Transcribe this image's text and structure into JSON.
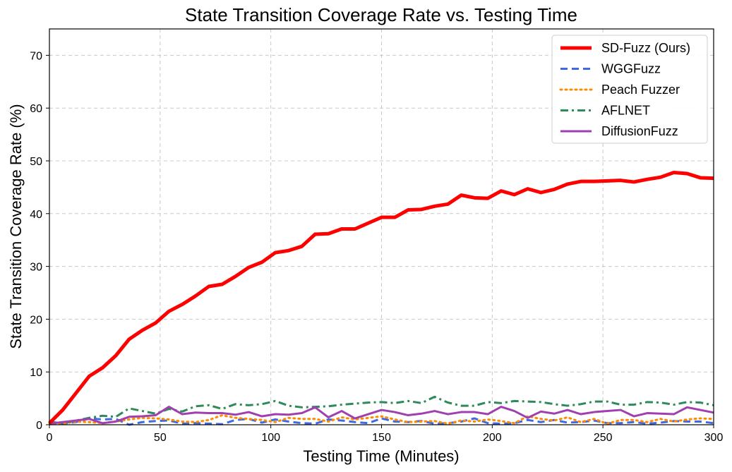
{
  "chart_data": {
    "type": "line",
    "title": "State Transition Coverage Rate vs. Testing Time",
    "xlabel": "Testing Time (Minutes)",
    "ylabel": "State Transition Coverage Rate (%)",
    "xlim": [
      0,
      300
    ],
    "ylim": [
      0,
      75
    ],
    "xticks": [
      0,
      50,
      100,
      150,
      200,
      250,
      300
    ],
    "yticks": [
      0,
      10,
      20,
      30,
      40,
      50,
      60,
      70
    ],
    "grid": true,
    "legend_position": "top-right",
    "x": [
      0,
      6,
      12,
      18,
      24,
      30,
      36,
      42,
      48,
      54,
      60,
      66,
      72,
      78,
      84,
      90,
      96,
      102,
      108,
      114,
      120,
      126,
      132,
      138,
      144,
      150,
      156,
      162,
      168,
      174,
      180,
      186,
      192,
      198,
      204,
      210,
      216,
      222,
      228,
      234,
      240,
      246,
      252,
      258,
      264,
      270,
      276,
      282,
      288,
      294,
      300
    ],
    "series": [
      {
        "name": "SD-Fuzz (Ours)",
        "color": "#ff0000",
        "style": "solid",
        "values": [
          0.3,
          2.8,
          6.0,
          9.2,
          10.8,
          13.1,
          16.2,
          17.9,
          19.3,
          21.5,
          22.8,
          24.4,
          26.2,
          26.6,
          28.1,
          29.8,
          30.8,
          32.6,
          33.0,
          33.8,
          36.1,
          36.2,
          37.1,
          37.1,
          38.2,
          39.3,
          39.3,
          40.7,
          40.8,
          41.4,
          41.8,
          43.5,
          43.0,
          42.9,
          44.3,
          43.6,
          44.7,
          44.0,
          44.6,
          45.6,
          46.1,
          46.1,
          46.2,
          46.3,
          46.0,
          46.5,
          46.9,
          47.8,
          47.6,
          46.8,
          46.7
        ]
      },
      {
        "name": "WGGFuzz",
        "color": "#4169e1",
        "style": "dashed",
        "values": [
          0.6,
          0.2,
          0.5,
          1.2,
          1.0,
          1.1,
          0.0,
          0.5,
          0.7,
          0.8,
          0.2,
          0.3,
          0.2,
          0.1,
          0.9,
          1.1,
          0.4,
          1.0,
          0.6,
          0.3,
          0.2,
          1.0,
          0.8,
          0.5,
          0.3,
          1.2,
          0.6,
          0.5,
          0.7,
          0.2,
          0.3,
          0.6,
          1.2,
          0.3,
          0.2,
          0.3,
          0.9,
          0.5,
          0.9,
          0.4,
          0.5,
          0.8,
          0.3,
          0.3,
          0.5,
          0.2,
          0.4,
          0.7,
          0.6,
          0.6,
          0.3
        ]
      },
      {
        "name": "Peach Fuzzer",
        "color": "#ff8c00",
        "style": "dotted",
        "values": [
          0.3,
          0.2,
          0.6,
          0.5,
          0.3,
          0.6,
          1.0,
          1.3,
          1.2,
          1.0,
          0.6,
          0.5,
          0.9,
          1.8,
          1.3,
          1.1,
          0.9,
          0.5,
          1.3,
          1.1,
          1.1,
          0.6,
          1.4,
          1.0,
          1.3,
          1.6,
          1.0,
          0.5,
          0.6,
          0.7,
          0.2,
          0.8,
          0.6,
          1.0,
          0.7,
          0.3,
          1.6,
          1.1,
          0.8,
          1.4,
          0.5,
          1.1,
          0.2,
          0.9,
          0.9,
          0.5,
          1.1,
          0.6,
          1.0,
          1.2,
          1.1
        ]
      },
      {
        "name": "AFLNET",
        "color": "#2e8b57",
        "style": "dashdot",
        "values": [
          0.5,
          0.3,
          0.8,
          1.3,
          1.7,
          1.5,
          3.1,
          2.6,
          2.1,
          3.0,
          2.5,
          3.5,
          3.7,
          3.0,
          3.9,
          3.7,
          3.9,
          4.5,
          3.6,
          3.3,
          3.4,
          3.5,
          3.8,
          4.0,
          4.2,
          4.3,
          4.1,
          4.5,
          4.1,
          5.3,
          4.2,
          3.6,
          3.6,
          4.3,
          4.1,
          4.5,
          4.4,
          4.3,
          3.9,
          3.6,
          3.9,
          4.4,
          4.4,
          3.8,
          3.8,
          4.3,
          4.2,
          3.8,
          4.3,
          4.2,
          3.7
        ]
      },
      {
        "name": "DiffusionFuzz",
        "color": "#a040b0",
        "style": "solid",
        "values": [
          0.2,
          0.5,
          0.8,
          1.1,
          0.3,
          0.6,
          1.5,
          1.6,
          1.8,
          3.4,
          2.0,
          2.3,
          2.2,
          2.2,
          1.9,
          2.4,
          1.6,
          2.0,
          1.9,
          2.2,
          3.3,
          1.4,
          2.6,
          1.2,
          2.0,
          2.8,
          2.4,
          1.8,
          2.1,
          2.6,
          2.0,
          2.4,
          2.4,
          2.0,
          3.4,
          2.6,
          1.3,
          2.5,
          2.1,
          2.8,
          2.0,
          2.4,
          2.6,
          2.8,
          1.6,
          2.2,
          2.1,
          2.0,
          3.3,
          2.8,
          2.3
        ]
      }
    ]
  }
}
